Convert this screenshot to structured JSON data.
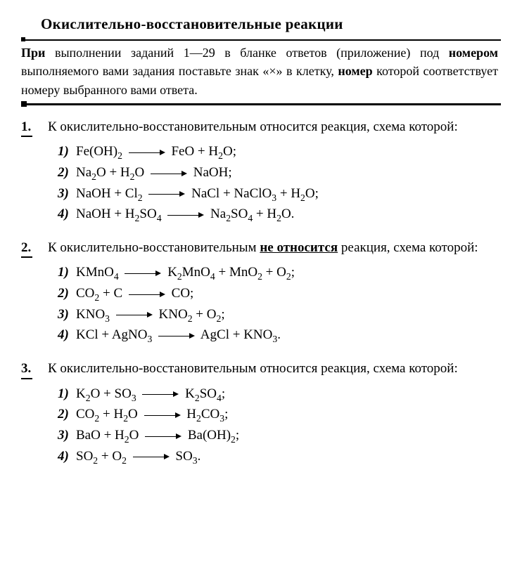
{
  "title": "Окислительно-восстановительные реакции",
  "instructions_pre": "При ",
  "instructions_mid": "выполнении заданий 1—29 в бланке ответов (приложение) под ",
  "instructions_mid2": "номером",
  "instructions_mid3": " выполняемого вами задания поставьте знак «×» в клетку, ",
  "instructions_end1": "номер",
  "instructions_end2": " которой соответствует номеру выбранного вами ответа.",
  "questions": [
    {
      "num": "1.",
      "text": "К окислительно-восстановительным относится реакция, схема которой:",
      "options": [
        {
          "n": "1)",
          "parts": [
            "Fe(OH)",
            {
              "sub": "2"
            },
            " ",
            {
              "arrow": true
            },
            " FeO + H",
            {
              "sub": "2"
            },
            "O;"
          ]
        },
        {
          "n": "2)",
          "parts": [
            "Na",
            {
              "sub": "2"
            },
            "O + H",
            {
              "sub": "2"
            },
            "O ",
            {
              "arrow": true
            },
            " NaOH;"
          ]
        },
        {
          "n": "3)",
          "parts": [
            "NaOH + Cl",
            {
              "sub": "2"
            },
            " ",
            {
              "arrow": true
            },
            " NaCl + NaClO",
            {
              "sub": "3"
            },
            " + H",
            {
              "sub": "2"
            },
            "O;"
          ]
        },
        {
          "n": "4)",
          "parts": [
            "NaOH + H",
            {
              "sub": "2"
            },
            "SO",
            {
              "sub": "4"
            },
            " ",
            {
              "arrow": true
            },
            " Na",
            {
              "sub": "2"
            },
            "SO",
            {
              "sub": "4"
            },
            " + H",
            {
              "sub": "2"
            },
            "O."
          ]
        }
      ]
    },
    {
      "num": "2.",
      "text_pre": "К окислительно-восстановительным ",
      "text_emph": "не относится",
      "text_post": " реакция, схема которой:",
      "options": [
        {
          "n": "1)",
          "parts": [
            "KMnO",
            {
              "sub": "4"
            },
            " ",
            {
              "arrow": true
            },
            " K",
            {
              "sub": "2"
            },
            "MnO",
            {
              "sub": "4"
            },
            " + MnO",
            {
              "sub": "2"
            },
            " + O",
            {
              "sub": "2"
            },
            ";"
          ]
        },
        {
          "n": "2)",
          "parts": [
            "CO",
            {
              "sub": "2"
            },
            " + C ",
            {
              "arrow": true
            },
            " CO;"
          ]
        },
        {
          "n": "3)",
          "parts": [
            "KNO",
            {
              "sub": "3"
            },
            " ",
            {
              "arrow": true
            },
            " KNO",
            {
              "sub": "2"
            },
            " + O",
            {
              "sub": "2"
            },
            ";"
          ]
        },
        {
          "n": "4)",
          "parts": [
            "KCl + AgNO",
            {
              "sub": "3"
            },
            " ",
            {
              "arrow": true
            },
            " AgCl + KNO",
            {
              "sub": "3"
            },
            "."
          ]
        }
      ]
    },
    {
      "num": "3.",
      "text": "К окислительно-восстановительным относится реакция, схема которой:",
      "options": [
        {
          "n": "1)",
          "parts": [
            "K",
            {
              "sub": "2"
            },
            "O + SO",
            {
              "sub": "3"
            },
            " ",
            {
              "arrow": true
            },
            " K",
            {
              "sub": "2"
            },
            "SO",
            {
              "sub": "4"
            },
            ";"
          ]
        },
        {
          "n": "2)",
          "parts": [
            "CO",
            {
              "sub": "2"
            },
            " + H",
            {
              "sub": "2"
            },
            "O ",
            {
              "arrow": true
            },
            " H",
            {
              "sub": "2"
            },
            "CO",
            {
              "sub": "3"
            },
            ";"
          ]
        },
        {
          "n": "3)",
          "parts": [
            "BaO + H",
            {
              "sub": "2"
            },
            "O ",
            {
              "arrow": true
            },
            " Ba(OH)",
            {
              "sub": "2"
            },
            ";"
          ]
        },
        {
          "n": "4)",
          "parts": [
            "SO",
            {
              "sub": "2"
            },
            " + O",
            {
              "sub": "2"
            },
            " ",
            {
              "arrow": true
            },
            " SO",
            {
              "sub": "3"
            },
            "."
          ]
        }
      ]
    }
  ]
}
